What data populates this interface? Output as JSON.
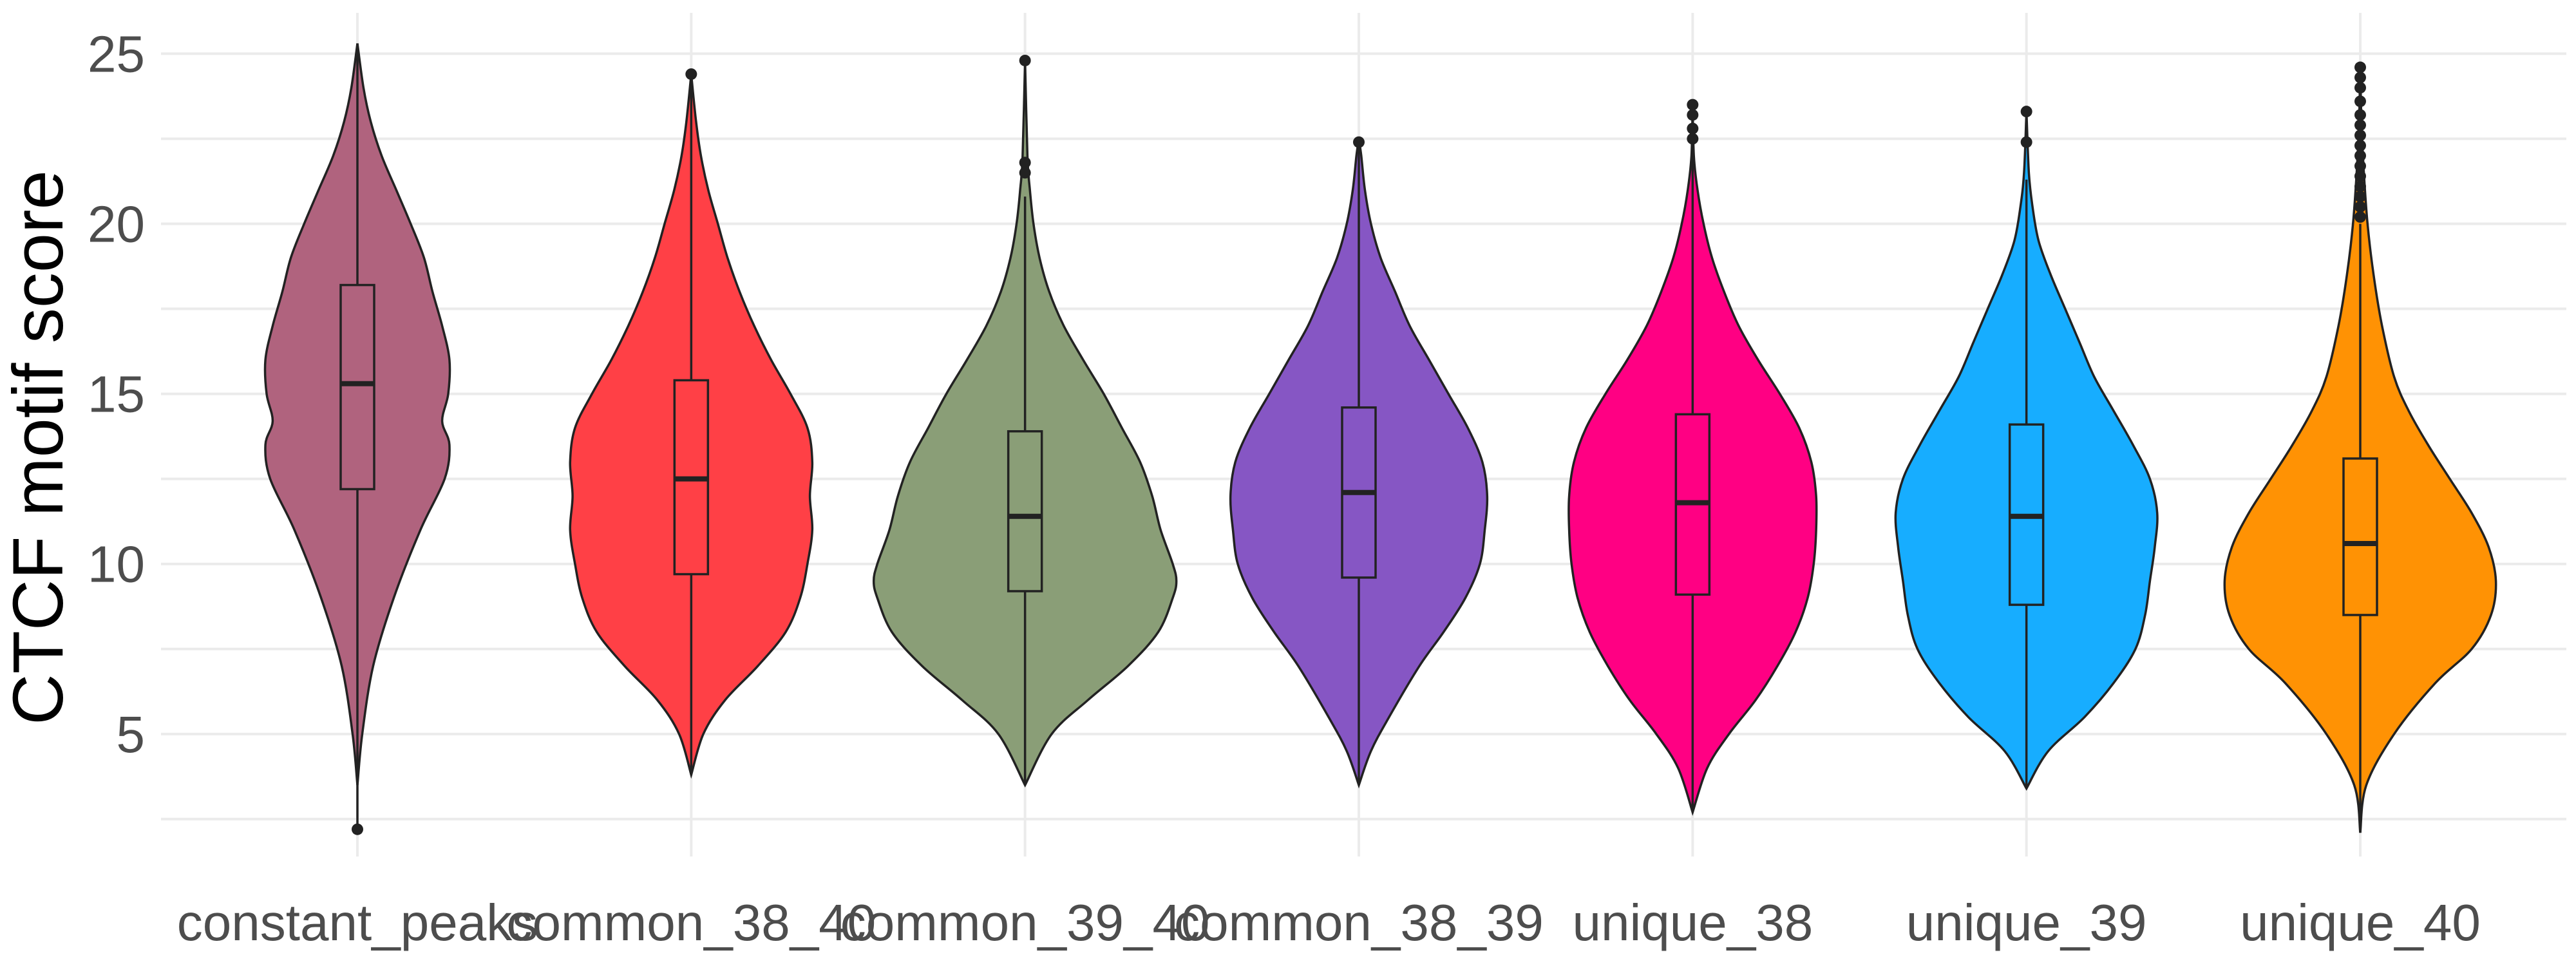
{
  "chart_data": {
    "type": "violin",
    "title": "",
    "xlabel": "",
    "ylabel": "CTCF motif score",
    "ylim": [
      1.4,
      26.2
    ],
    "yticks": [
      5,
      10,
      15,
      20,
      25
    ],
    "grid": true,
    "legend": "none",
    "categories": [
      "constant_peaks",
      "common_38_40",
      "common_39_40",
      "common_38_39",
      "unique_38",
      "unique_39",
      "unique_40"
    ],
    "series": [
      {
        "category": "constant_peaks",
        "color": "#B0637E",
        "range": [
          2.2,
          25.3
        ],
        "box": {
          "q1": 12.2,
          "median": 15.3,
          "q3": 18.2,
          "whisker_low": 2.2,
          "whisker_high": 25.3
        },
        "outliers": [
          2.2
        ],
        "density": [
          [
            3.5,
            0.0
          ],
          [
            5,
            0.04
          ],
          [
            7,
            0.13
          ],
          [
            9,
            0.3
          ],
          [
            11,
            0.52
          ],
          [
            12.5,
            0.72
          ],
          [
            13.5,
            0.76
          ],
          [
            14.2,
            0.7
          ],
          [
            15,
            0.75
          ],
          [
            16,
            0.76
          ],
          [
            17,
            0.7
          ],
          [
            18,
            0.62
          ],
          [
            19,
            0.55
          ],
          [
            20,
            0.44
          ],
          [
            21,
            0.32
          ],
          [
            22,
            0.2
          ],
          [
            23,
            0.11
          ],
          [
            24,
            0.05
          ],
          [
            25.3,
            0.0
          ]
        ]
      },
      {
        "category": "common_38_40",
        "color": "#FF4046",
        "range": [
          3.8,
          24.4
        ],
        "box": {
          "q1": 9.7,
          "median": 12.5,
          "q3": 15.4,
          "whisker_low": 3.8,
          "whisker_high": 24.4
        },
        "outliers": [
          24.4
        ],
        "density": [
          [
            3.8,
            0.0
          ],
          [
            5,
            0.1
          ],
          [
            6,
            0.28
          ],
          [
            7,
            0.55
          ],
          [
            8,
            0.78
          ],
          [
            9,
            0.9
          ],
          [
            10,
            0.96
          ],
          [
            11,
            1.0
          ],
          [
            12,
            0.98
          ],
          [
            13,
            1.0
          ],
          [
            14,
            0.96
          ],
          [
            15,
            0.82
          ],
          [
            16,
            0.66
          ],
          [
            17,
            0.52
          ],
          [
            18,
            0.4
          ],
          [
            19,
            0.3
          ],
          [
            20,
            0.22
          ],
          [
            21,
            0.14
          ],
          [
            22,
            0.08
          ],
          [
            23,
            0.04
          ],
          [
            24.4,
            0.0
          ]
        ]
      },
      {
        "category": "common_39_40",
        "color": "#8A9E77",
        "range": [
          3.5,
          24.8
        ],
        "box": {
          "q1": 9.2,
          "median": 11.4,
          "q3": 13.9,
          "whisker_low": 3.5,
          "whisker_high": 20.8
        },
        "outliers": [
          21.5,
          21.8,
          24.8
        ],
        "density": [
          [
            3.5,
            0.0
          ],
          [
            5,
            0.22
          ],
          [
            6,
            0.52
          ],
          [
            7,
            0.85
          ],
          [
            8,
            1.1
          ],
          [
            9,
            1.22
          ],
          [
            9.5,
            1.25
          ],
          [
            10,
            1.22
          ],
          [
            11,
            1.12
          ],
          [
            12,
            1.05
          ],
          [
            13,
            0.95
          ],
          [
            14,
            0.8
          ],
          [
            15,
            0.65
          ],
          [
            16,
            0.48
          ],
          [
            17,
            0.32
          ],
          [
            18,
            0.2
          ],
          [
            19,
            0.12
          ],
          [
            20,
            0.07
          ],
          [
            21,
            0.04
          ],
          [
            22,
            0.02
          ],
          [
            24.8,
            0.0
          ]
        ]
      },
      {
        "category": "common_38_39",
        "color": "#8656C4",
        "range": [
          3.5,
          22.5
        ],
        "box": {
          "q1": 9.6,
          "median": 12.1,
          "q3": 14.6,
          "whisker_low": 3.5,
          "whisker_high": 22.3
        },
        "outliers": [
          22.4
        ],
        "density": [
          [
            3.5,
            0.0
          ],
          [
            4.5,
            0.1
          ],
          [
            5.5,
            0.25
          ],
          [
            7,
            0.5
          ],
          [
            8,
            0.7
          ],
          [
            9,
            0.88
          ],
          [
            10,
            1.0
          ],
          [
            11,
            1.04
          ],
          [
            12,
            1.06
          ],
          [
            13,
            1.02
          ],
          [
            14,
            0.9
          ],
          [
            15,
            0.74
          ],
          [
            16,
            0.58
          ],
          [
            17,
            0.42
          ],
          [
            18,
            0.3
          ],
          [
            19,
            0.18
          ],
          [
            20,
            0.1
          ],
          [
            21,
            0.05
          ],
          [
            22,
            0.02
          ],
          [
            22.5,
            0.0
          ]
        ]
      },
      {
        "category": "unique_38",
        "color": "#FF0083",
        "range": [
          2.7,
          23.5
        ],
        "box": {
          "q1": 9.1,
          "median": 11.8,
          "q3": 14.4,
          "whisker_low": 2.7,
          "whisker_high": 22.2
        },
        "outliers": [
          22.5,
          22.8,
          23.2,
          23.5
        ],
        "density": [
          [
            2.7,
            0.0
          ],
          [
            4,
            0.12
          ],
          [
            5,
            0.3
          ],
          [
            6,
            0.52
          ],
          [
            7,
            0.7
          ],
          [
            8,
            0.85
          ],
          [
            9,
            0.95
          ],
          [
            10,
            1.0
          ],
          [
            11,
            1.02
          ],
          [
            12,
            1.02
          ],
          [
            13,
            0.98
          ],
          [
            14,
            0.88
          ],
          [
            15,
            0.72
          ],
          [
            16,
            0.54
          ],
          [
            17,
            0.38
          ],
          [
            18,
            0.26
          ],
          [
            19,
            0.16
          ],
          [
            20,
            0.09
          ],
          [
            21,
            0.04
          ],
          [
            22,
            0.01
          ],
          [
            23.5,
            0.0
          ]
        ]
      },
      {
        "category": "unique_39",
        "color": "#17ADFF",
        "range": [
          3.4,
          23.3
        ],
        "box": {
          "q1": 8.8,
          "median": 11.4,
          "q3": 14.1,
          "whisker_low": 3.4,
          "whisker_high": 21.3
        },
        "outliers": [
          22.4,
          23.3
        ],
        "density": [
          [
            3.4,
            0.0
          ],
          [
            4.5,
            0.18
          ],
          [
            5.5,
            0.48
          ],
          [
            6.5,
            0.72
          ],
          [
            7.5,
            0.9
          ],
          [
            8.5,
            0.98
          ],
          [
            9.5,
            1.02
          ],
          [
            10.5,
            1.06
          ],
          [
            11.5,
            1.08
          ],
          [
            12.5,
            1.02
          ],
          [
            13.5,
            0.88
          ],
          [
            14.5,
            0.72
          ],
          [
            15.5,
            0.56
          ],
          [
            16.5,
            0.44
          ],
          [
            17.5,
            0.32
          ],
          [
            18.5,
            0.2
          ],
          [
            19.5,
            0.1
          ],
          [
            20.5,
            0.05
          ],
          [
            21.5,
            0.02
          ],
          [
            23.3,
            0.0
          ]
        ]
      },
      {
        "category": "unique_40",
        "color": "#FF9204",
        "range": [
          2.1,
          24.6
        ],
        "box": {
          "q1": 8.5,
          "median": 10.6,
          "q3": 13.1,
          "whisker_low": 2.1,
          "whisker_high": 20.0
        },
        "outliers": [
          20.2,
          20.5,
          20.8,
          21.1,
          21.4,
          21.7,
          22.0,
          22.3,
          22.6,
          22.9,
          23.2,
          23.6,
          24.0,
          24.3,
          24.6
        ],
        "density": [
          [
            2.1,
            0.0
          ],
          [
            3.5,
            0.05
          ],
          [
            5,
            0.28
          ],
          [
            6.5,
            0.62
          ],
          [
            7.5,
            0.92
          ],
          [
            8.5,
            1.08
          ],
          [
            9.5,
            1.12
          ],
          [
            10.5,
            1.06
          ],
          [
            11.5,
            0.92
          ],
          [
            12.5,
            0.74
          ],
          [
            13.5,
            0.56
          ],
          [
            14.5,
            0.4
          ],
          [
            15.5,
            0.28
          ],
          [
            17,
            0.18
          ],
          [
            18.5,
            0.11
          ],
          [
            20,
            0.06
          ],
          [
            21.5,
            0.03
          ],
          [
            23,
            0.01
          ],
          [
            24.6,
            0.0
          ]
        ]
      }
    ]
  }
}
